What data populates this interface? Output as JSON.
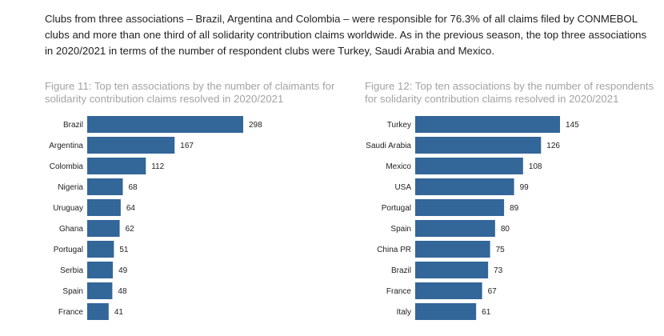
{
  "intro_text": "Clubs from three associations – Brazil, Argentina and Colombia – were responsible for 76.3% of all claims filed by CONMEBOL clubs and more than one third of all solidarity contribution claims worldwide. As in the previous season, the top three associations in 2020/2021 in terms of the number of respondent clubs were Turkey, Saudi Arabia and Mexico.",
  "colors": {
    "bar": "#336699",
    "title": "#a3a3a3"
  },
  "chart_data": [
    {
      "type": "bar",
      "orientation": "horizontal",
      "title": "Figure 11: Top ten associations by the number of claimants for solidarity contribution claims resolved in 2020/2021",
      "categories": [
        "Brazil",
        "Argentina",
        "Colombia",
        "Nigeria",
        "Uruguay",
        "Ghana",
        "Portugal",
        "Serbia",
        "Spain",
        "France"
      ],
      "values": [
        298,
        167,
        112,
        68,
        64,
        62,
        51,
        49,
        48,
        41
      ],
      "xlim": [
        0,
        298
      ],
      "grid": false,
      "legend": "none"
    },
    {
      "type": "bar",
      "orientation": "horizontal",
      "title": "Figure 12: Top ten associations by the number of respondents for solidarity contribution claims resolved in 2020/2021",
      "categories": [
        "Turkey",
        "Saudi Arabia",
        "Mexico",
        "USA",
        "Portugal",
        "Spain",
        "China PR",
        "Brazil",
        "France",
        "Italy"
      ],
      "values": [
        145,
        126,
        108,
        99,
        89,
        80,
        75,
        73,
        67,
        61
      ],
      "xlim": [
        0,
        145
      ],
      "grid": false,
      "legend": "none"
    }
  ]
}
